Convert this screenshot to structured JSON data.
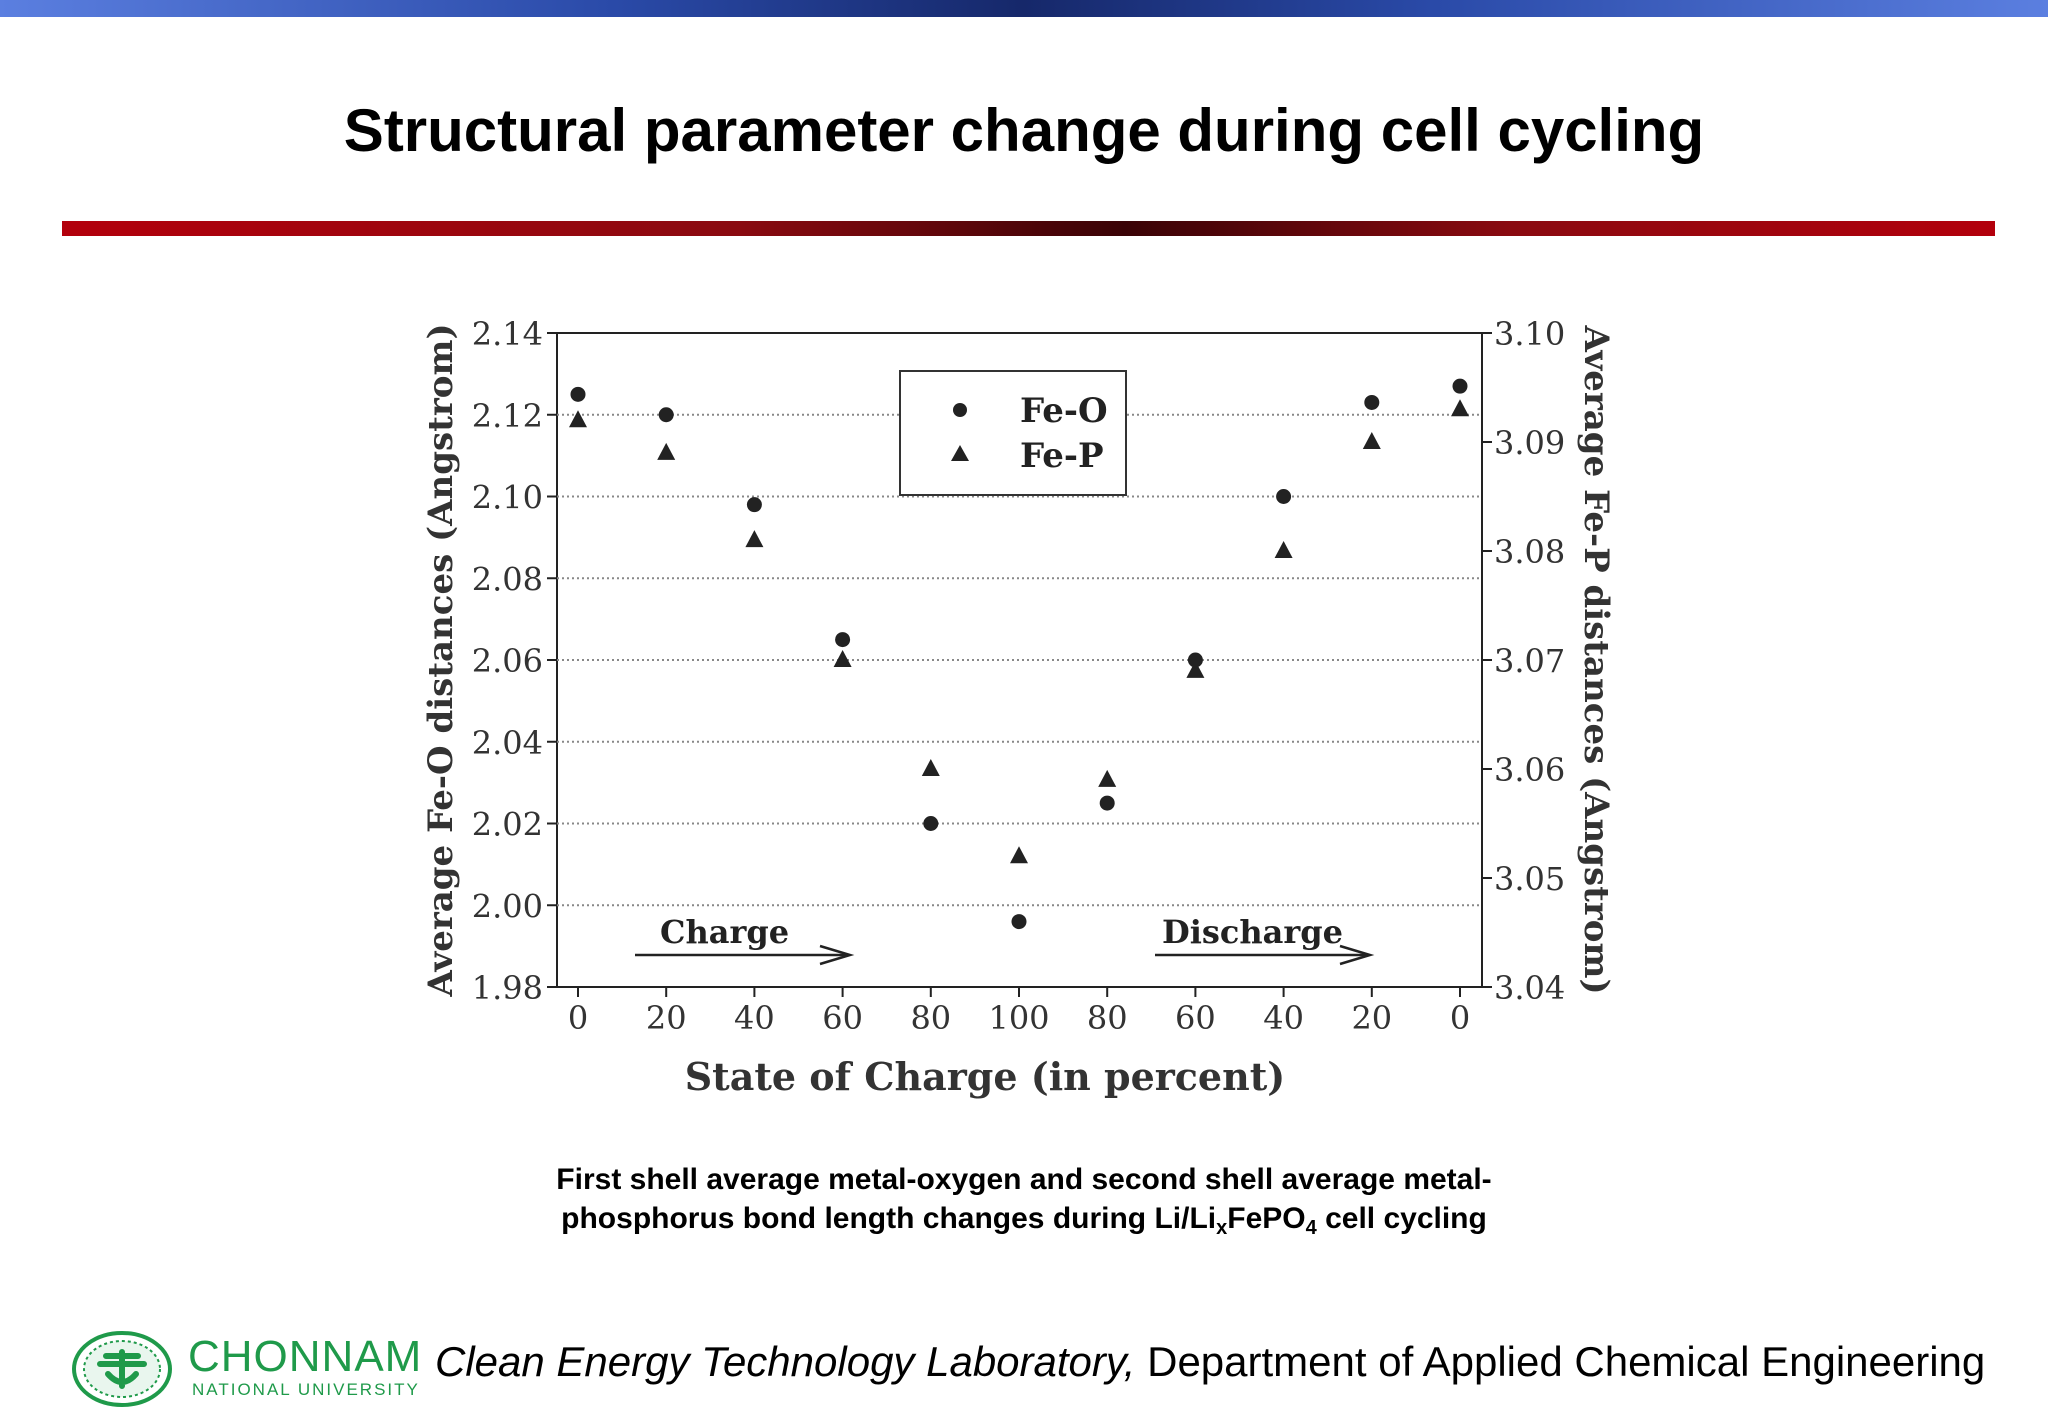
{
  "slide": {
    "title": "Structural parameter change during cell cycling",
    "caption_line1": "First shell average metal-oxygen and second shell average metal-",
    "caption_line2_pre": "phosphorus bond length changes during Li/Li",
    "caption_sub_x": "x",
    "caption_mid": "FePO",
    "caption_sub_4": "4",
    "caption_post": " cell cycling",
    "footer_lab": "Clean Energy Technology Laboratory,",
    "footer_dept": " Department of Applied Chemical Engineering",
    "university_name": "CHONNAM",
    "university_sub": "NATIONAL UNIVERSITY",
    "colors": {
      "top_bar": "#2a4aa8",
      "rule": "#b3000c",
      "brand": "#1f9a4a"
    }
  },
  "chart_data": {
    "type": "scatter",
    "categories": [
      "0",
      "20",
      "40",
      "60",
      "80",
      "100",
      "80",
      "60",
      "40",
      "20",
      "0"
    ],
    "xlabel": "State of Charge (in percent)",
    "ylabel_left": "Average Fe-O distances (Angstrom)",
    "ylabel_right": "Average Fe-P distances (Angstrom)",
    "ylim_left": [
      1.98,
      2.14
    ],
    "ylim_right": [
      3.04,
      3.1
    ],
    "yticks_left": [
      "1.98",
      "2.00",
      "2.02",
      "2.04",
      "2.06",
      "2.08",
      "2.10",
      "2.12",
      "2.14"
    ],
    "yticks_right": [
      "3.04",
      "3.05",
      "3.06",
      "3.07",
      "3.08",
      "3.09",
      "3.10"
    ],
    "grid": "horizontal dotted",
    "legend_position": "top-center",
    "series": [
      {
        "name": "Fe-O",
        "marker": "circle",
        "axis": "left",
        "values": [
          2.125,
          2.12,
          2.098,
          2.065,
          2.02,
          1.996,
          2.025,
          2.06,
          2.1,
          2.123,
          2.127
        ]
      },
      {
        "name": "Fe-P",
        "marker": "triangle",
        "axis": "right",
        "values": [
          3.092,
          3.089,
          3.081,
          3.07,
          3.06,
          3.052,
          3.059,
          3.069,
          3.08,
          3.09,
          3.093
        ]
      }
    ],
    "annotations": [
      "Charge",
      "Discharge"
    ]
  }
}
